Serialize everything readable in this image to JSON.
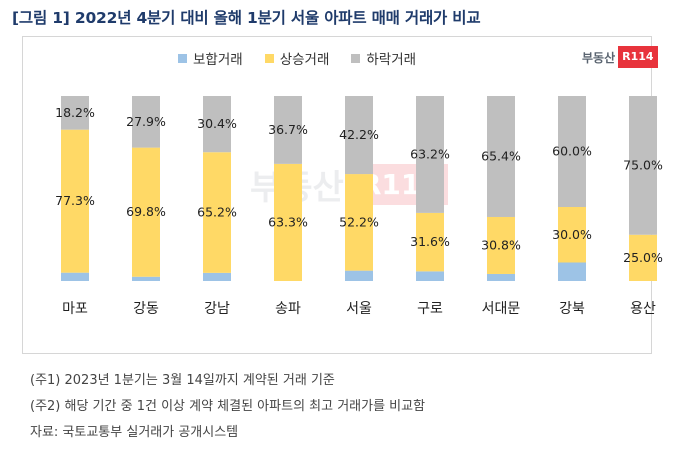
{
  "title": "[그림 1] 2022년 4분기 대비 올해 1분기 서울 아파트 매매 거래가 비교",
  "brand": {
    "text": "부동산",
    "box": "R114"
  },
  "legend": [
    {
      "label": "보합거래",
      "color": "#9dc3e6"
    },
    {
      "label": "상승거래",
      "color": "#ffd966"
    },
    {
      "label": "하락거래",
      "color": "#bfbfbf"
    }
  ],
  "chart_data": {
    "type": "bar",
    "stacked": true,
    "categories": [
      "마포",
      "강동",
      "강남",
      "송파",
      "서울",
      "구로",
      "서대문",
      "강북",
      "용산"
    ],
    "series": [
      {
        "name": "보합거래",
        "color": "#9dc3e6",
        "values": [
          4.5,
          2.3,
          4.4,
          0.0,
          5.6,
          5.2,
          3.8,
          10.0,
          0.0
        ]
      },
      {
        "name": "상승거래",
        "color": "#ffd966",
        "values": [
          77.3,
          69.8,
          65.2,
          63.3,
          52.2,
          31.6,
          30.8,
          30.0,
          25.0
        ]
      },
      {
        "name": "하락거래",
        "color": "#bfbfbf",
        "values": [
          18.2,
          27.9,
          30.4,
          36.7,
          42.2,
          63.2,
          65.4,
          60.0,
          75.0
        ]
      }
    ],
    "data_labels": {
      "상승거래": [
        "77.3%",
        "69.8%",
        "65.2%",
        "63.3%",
        "52.2%",
        "31.6%",
        "30.8%",
        "30.0%",
        "25.0%"
      ],
      "하락거래": [
        "18.2%",
        "27.9%",
        "30.4%",
        "36.7%",
        "42.2%",
        "63.2%",
        "65.4%",
        "60.0%",
        "75.0%"
      ]
    },
    "ylim": [
      0,
      100
    ],
    "legend_position": "top",
    "grid": false
  },
  "notes": [
    "(주1) 2023년 1분기는 3월 14일까지 계약된 거래 기준",
    "(주2) 해당 기간 중 1건 이상 계약 체결된 아파트의 최고 거래가를 비교함",
    "자료: 국토교통부 실거래가 공개시스템"
  ]
}
